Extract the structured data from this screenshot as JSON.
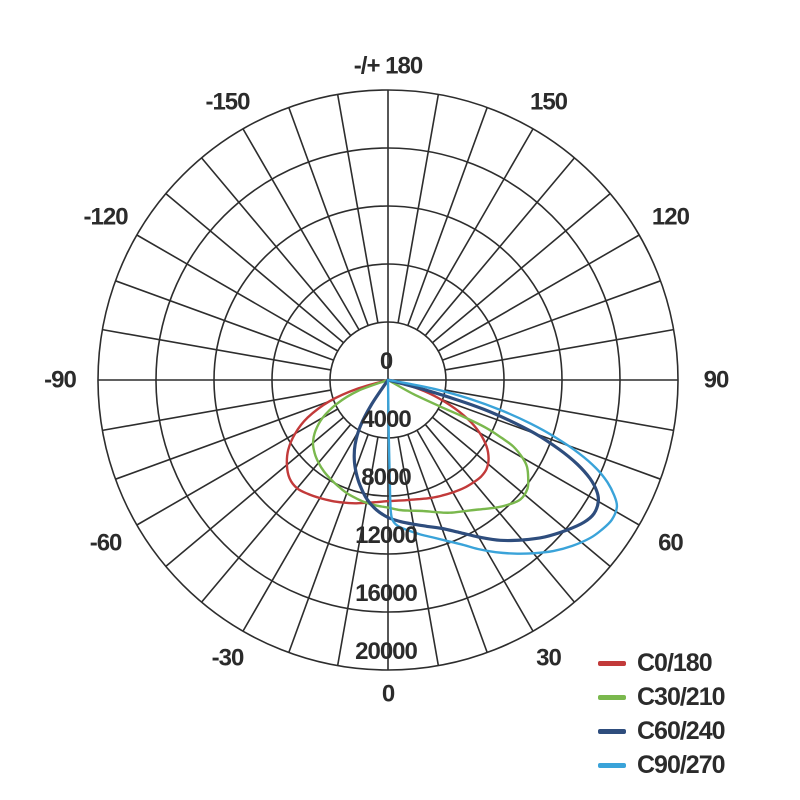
{
  "chart_data": {
    "type": "line",
    "subtype": "polar-photometric",
    "title": "",
    "orientation": "0 degrees at bottom, positive angles to the right, curves start and end at center (value 0)",
    "radial_max": 20000,
    "radial_ticks": [
      {
        "value": 0,
        "label": "0"
      },
      {
        "value": 4000,
        "label": "4000"
      },
      {
        "value": 8000,
        "label": "8000"
      },
      {
        "value": 12000,
        "label": "12000"
      },
      {
        "value": 16000,
        "label": "16000"
      },
      {
        "value": 20000,
        "label": "20000"
      }
    ],
    "angular_grid_step_deg": 10,
    "angular_labels": [
      {
        "angle": 0,
        "label": "0"
      },
      {
        "angle": 30,
        "label": "30"
      },
      {
        "angle": 60,
        "label": "60"
      },
      {
        "angle": 90,
        "label": "90"
      },
      {
        "angle": 120,
        "label": "120"
      },
      {
        "angle": 150,
        "label": "150"
      },
      {
        "angle": 180,
        "label": "-/+ 180"
      },
      {
        "angle": -30,
        "label": "-30"
      },
      {
        "angle": -60,
        "label": "-60"
      },
      {
        "angle": -90,
        "label": "-90"
      },
      {
        "angle": -120,
        "label": "-120"
      },
      {
        "angle": -150,
        "label": "-150"
      }
    ],
    "grid_color": "#2d2d2d",
    "text_color": "#2b2b2b",
    "legend_position": "bottom-right",
    "series": [
      {
        "name": "C0/180",
        "color": "#c23a3a",
        "stroke_width": 2.4,
        "points": [
          [
            -78,
            0
          ],
          [
            -74,
            2200
          ],
          [
            -70,
            4300
          ],
          [
            -65,
            6100
          ],
          [
            -60,
            7400
          ],
          [
            -55,
            8400
          ],
          [
            -50,
            9100
          ],
          [
            -45,
            9600
          ],
          [
            -40,
            9750
          ],
          [
            -35,
            9600
          ],
          [
            -30,
            9400
          ],
          [
            -25,
            9200
          ],
          [
            -20,
            9000
          ],
          [
            -15,
            8800
          ],
          [
            -10,
            8600
          ],
          [
            -5,
            8450
          ],
          [
            0,
            8350
          ],
          [
            5,
            8350
          ],
          [
            10,
            8400
          ],
          [
            15,
            8500
          ],
          [
            20,
            8650
          ],
          [
            25,
            8800
          ],
          [
            30,
            8950
          ],
          [
            35,
            9100
          ],
          [
            40,
            9200
          ],
          [
            44,
            9250
          ],
          [
            48,
            9150
          ],
          [
            52,
            8800
          ],
          [
            56,
            8200
          ],
          [
            60,
            7300
          ],
          [
            64,
            6100
          ],
          [
            68,
            4600
          ],
          [
            72,
            3000
          ],
          [
            76,
            1300
          ],
          [
            78,
            0
          ]
        ]
      },
      {
        "name": "C30/210",
        "color": "#7ab84d",
        "stroke_width": 2.4,
        "points": [
          [
            -74,
            0
          ],
          [
            -70,
            2200
          ],
          [
            -65,
            3900
          ],
          [
            -60,
            5200
          ],
          [
            -55,
            6100
          ],
          [
            -50,
            6750
          ],
          [
            -45,
            7150
          ],
          [
            -40,
            7450
          ],
          [
            -35,
            7700
          ],
          [
            -30,
            7900
          ],
          [
            -25,
            8100
          ],
          [
            -20,
            8300
          ],
          [
            -15,
            8450
          ],
          [
            -10,
            8600
          ],
          [
            -5,
            8700
          ],
          [
            0,
            8800
          ],
          [
            5,
            9000
          ],
          [
            10,
            9150
          ],
          [
            15,
            9350
          ],
          [
            20,
            9700
          ],
          [
            25,
            10100
          ],
          [
            30,
            10450
          ],
          [
            35,
            10900
          ],
          [
            40,
            11500
          ],
          [
            44,
            11950
          ],
          [
            48,
            12300
          ],
          [
            52,
            12200
          ],
          [
            55,
            11800
          ],
          [
            58,
            11300
          ],
          [
            60,
            10700
          ],
          [
            62,
            9800
          ],
          [
            63,
            8800
          ],
          [
            64,
            7500
          ],
          [
            64,
            5800
          ],
          [
            63,
            4000
          ],
          [
            61,
            2000
          ],
          [
            59,
            0
          ]
        ]
      },
      {
        "name": "C60/240",
        "color": "#2e4d7d",
        "stroke_width": 3.2,
        "points": [
          [
            -36,
            0
          ],
          [
            -34,
            2000
          ],
          [
            -31,
            3700
          ],
          [
            -27,
            5000
          ],
          [
            -23,
            5950
          ],
          [
            -19,
            6750
          ],
          [
            -15,
            7500
          ],
          [
            -10,
            8350
          ],
          [
            -5,
            9000
          ],
          [
            0,
            9480
          ],
          [
            5,
            9800
          ],
          [
            10,
            10100
          ],
          [
            15,
            10450
          ],
          [
            20,
            10900
          ],
          [
            25,
            11600
          ],
          [
            30,
            12500
          ],
          [
            35,
            13500
          ],
          [
            40,
            14400
          ],
          [
            45,
            15300
          ],
          [
            50,
            16100
          ],
          [
            54,
            16700
          ],
          [
            57,
            16930
          ],
          [
            60,
            16750
          ],
          [
            62,
            16300
          ],
          [
            64,
            15500
          ],
          [
            66,
            14300
          ],
          [
            68,
            12700
          ],
          [
            70,
            10800
          ],
          [
            71.5,
            8900
          ],
          [
            73,
            6900
          ],
          [
            74,
            4900
          ],
          [
            75,
            2900
          ],
          [
            75.5,
            1000
          ],
          [
            75.5,
            0
          ]
        ]
      },
      {
        "name": "C90/270",
        "color": "#3aa3d9",
        "stroke_width": 2.4,
        "points": [
          [
            0.5,
            0
          ],
          [
            0.8,
            4000
          ],
          [
            1,
            7000
          ],
          [
            1.2,
            9000
          ],
          [
            2,
            9700
          ],
          [
            4,
            10100
          ],
          [
            8,
            10500
          ],
          [
            12,
            10900
          ],
          [
            16,
            11300
          ],
          [
            20,
            11800
          ],
          [
            24,
            12400
          ],
          [
            28,
            13200
          ],
          [
            32,
            14000
          ],
          [
            36,
            14800
          ],
          [
            40,
            15600
          ],
          [
            44,
            16400
          ],
          [
            48,
            17100
          ],
          [
            52,
            17700
          ],
          [
            55,
            18000
          ],
          [
            58,
            18200
          ],
          [
            61,
            18050
          ],
          [
            63,
            17500
          ],
          [
            65,
            16700
          ],
          [
            67,
            15600
          ],
          [
            69,
            14100
          ],
          [
            71,
            12300
          ],
          [
            73,
            10300
          ],
          [
            75,
            8100
          ],
          [
            77,
            5800
          ],
          [
            79,
            3300
          ],
          [
            80,
            1300
          ],
          [
            80,
            0
          ]
        ]
      }
    ]
  }
}
